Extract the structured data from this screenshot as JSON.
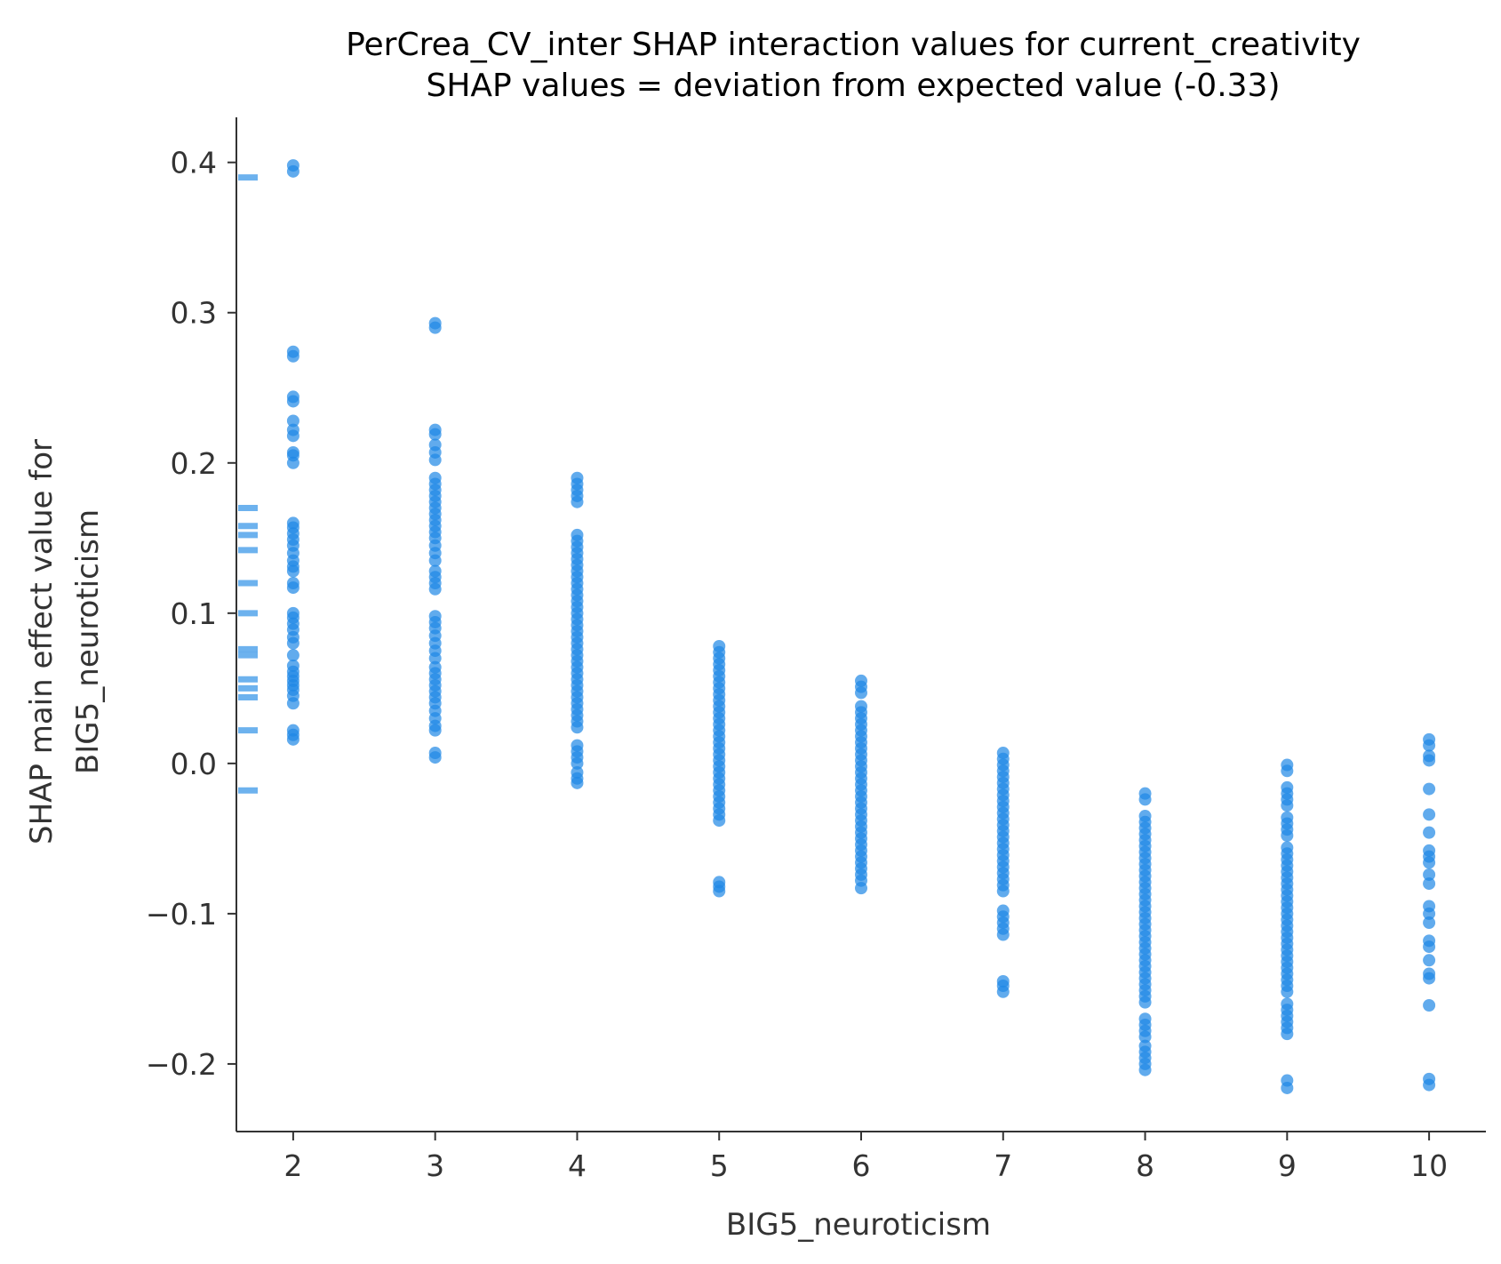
{
  "chart_data": {
    "type": "scatter",
    "title_line1": "PerCrea_CV_inter SHAP interaction values for current_creativity",
    "title_line2": "SHAP values = deviation from expected value (-0.33)",
    "xlabel": "BIG5_neuroticism",
    "ylabel_line1": "SHAP main effect value for",
    "ylabel_line2": "BIG5_neuroticism",
    "xlim": [
      1.6,
      10.4
    ],
    "ylim": [
      -0.245,
      0.43
    ],
    "x_ticks": [
      2,
      3,
      4,
      5,
      6,
      7,
      8,
      9,
      10
    ],
    "x_tick_labels": [
      "2",
      "3",
      "4",
      "5",
      "6",
      "7",
      "8",
      "9",
      "10"
    ],
    "y_ticks": [
      -0.2,
      -0.1,
      0.0,
      0.1,
      0.2,
      0.3,
      0.4
    ],
    "y_tick_labels": [
      "−0.2",
      "−0.1",
      "0.0",
      "0.1",
      "0.2",
      "0.3",
      "0.4"
    ],
    "grid": false,
    "color": "#1e88e5",
    "rug_values": [
      0.39,
      0.17,
      0.158,
      0.152,
      0.142,
      0.12,
      0.1,
      0.076,
      0.072,
      0.056,
      0.05,
      0.044,
      0.022,
      -0.018
    ],
    "series": [
      {
        "points": [
          {
            "x": 2,
            "y": [
              0.398,
              0.394,
              0.274,
              0.271,
              0.244,
              0.241,
              0.228,
              0.222,
              0.218,
              0.207,
              0.205,
              0.2,
              0.16,
              0.157,
              0.153,
              0.149,
              0.145,
              0.14,
              0.135,
              0.131,
              0.128,
              0.12,
              0.117,
              0.1,
              0.097,
              0.093,
              0.089,
              0.084,
              0.08,
              0.072,
              0.065,
              0.061,
              0.058,
              0.055,
              0.052,
              0.049,
              0.045,
              0.04,
              0.022,
              0.019,
              0.016
            ]
          },
          {
            "x": 3,
            "y": [
              0.293,
              0.29,
              0.222,
              0.219,
              0.212,
              0.207,
              0.202,
              0.19,
              0.186,
              0.182,
              0.178,
              0.174,
              0.17,
              0.166,
              0.162,
              0.158,
              0.154,
              0.15,
              0.145,
              0.14,
              0.135,
              0.128,
              0.124,
              0.12,
              0.116,
              0.098,
              0.094,
              0.09,
              0.085,
              0.08,
              0.075,
              0.07,
              0.064,
              0.06,
              0.056,
              0.052,
              0.048,
              0.044,
              0.04,
              0.035,
              0.03,
              0.025,
              0.022,
              0.007,
              0.004
            ]
          },
          {
            "x": 4,
            "y": [
              0.19,
              0.186,
              0.182,
              0.178,
              0.174,
              0.152,
              0.148,
              0.144,
              0.14,
              0.136,
              0.132,
              0.128,
              0.124,
              0.12,
              0.116,
              0.112,
              0.108,
              0.104,
              0.1,
              0.096,
              0.092,
              0.088,
              0.084,
              0.08,
              0.076,
              0.072,
              0.068,
              0.064,
              0.06,
              0.056,
              0.052,
              0.048,
              0.044,
              0.04,
              0.036,
              0.032,
              0.028,
              0.024,
              0.012,
              0.008,
              0.004,
              0.0,
              -0.006,
              -0.01,
              -0.013
            ]
          },
          {
            "x": 5,
            "y": [
              0.078,
              0.074,
              0.07,
              0.066,
              0.062,
              0.058,
              0.054,
              0.05,
              0.046,
              0.042,
              0.038,
              0.034,
              0.03,
              0.026,
              0.022,
              0.018,
              0.014,
              0.01,
              0.006,
              0.002,
              -0.002,
              -0.006,
              -0.01,
              -0.014,
              -0.018,
              -0.022,
              -0.026,
              -0.03,
              -0.034,
              -0.038,
              -0.079,
              -0.082,
              -0.085
            ]
          },
          {
            "x": 6,
            "y": [
              0.055,
              0.051,
              0.047,
              0.038,
              0.034,
              0.03,
              0.026,
              0.022,
              0.018,
              0.014,
              0.01,
              0.006,
              0.002,
              -0.002,
              -0.006,
              -0.01,
              -0.014,
              -0.018,
              -0.022,
              -0.026,
              -0.03,
              -0.034,
              -0.038,
              -0.042,
              -0.046,
              -0.05,
              -0.054,
              -0.058,
              -0.062,
              -0.066,
              -0.07,
              -0.074,
              -0.078,
              -0.083
            ]
          },
          {
            "x": 7,
            "y": [
              0.007,
              0.003,
              -0.001,
              -0.005,
              -0.009,
              -0.013,
              -0.017,
              -0.021,
              -0.025,
              -0.029,
              -0.033,
              -0.037,
              -0.041,
              -0.045,
              -0.049,
              -0.053,
              -0.057,
              -0.061,
              -0.065,
              -0.069,
              -0.073,
              -0.077,
              -0.081,
              -0.085,
              -0.098,
              -0.102,
              -0.106,
              -0.11,
              -0.114,
              -0.145,
              -0.148,
              -0.152
            ]
          },
          {
            "x": 8,
            "y": [
              -0.02,
              -0.024,
              -0.035,
              -0.039,
              -0.043,
              -0.047,
              -0.051,
              -0.055,
              -0.059,
              -0.063,
              -0.067,
              -0.071,
              -0.075,
              -0.079,
              -0.083,
              -0.087,
              -0.091,
              -0.095,
              -0.099,
              -0.103,
              -0.107,
              -0.111,
              -0.115,
              -0.119,
              -0.123,
              -0.127,
              -0.131,
              -0.135,
              -0.139,
              -0.143,
              -0.147,
              -0.151,
              -0.155,
              -0.159,
              -0.17,
              -0.174,
              -0.178,
              -0.182,
              -0.188,
              -0.192,
              -0.196,
              -0.2,
              -0.204
            ]
          },
          {
            "x": 9,
            "y": [
              -0.001,
              -0.005,
              -0.016,
              -0.02,
              -0.024,
              -0.028,
              -0.036,
              -0.04,
              -0.044,
              -0.048,
              -0.056,
              -0.06,
              -0.064,
              -0.068,
              -0.072,
              -0.076,
              -0.08,
              -0.084,
              -0.088,
              -0.092,
              -0.096,
              -0.1,
              -0.104,
              -0.108,
              -0.112,
              -0.116,
              -0.12,
              -0.124,
              -0.128,
              -0.132,
              -0.136,
              -0.14,
              -0.144,
              -0.148,
              -0.152,
              -0.16,
              -0.164,
              -0.168,
              -0.172,
              -0.176,
              -0.18,
              -0.211,
              -0.216
            ]
          },
          {
            "x": 10,
            "y": [
              0.016,
              0.012,
              0.005,
              0.002,
              -0.017,
              -0.034,
              -0.046,
              -0.058,
              -0.062,
              -0.066,
              -0.074,
              -0.08,
              -0.095,
              -0.1,
              -0.106,
              -0.118,
              -0.122,
              -0.131,
              -0.14,
              -0.143,
              -0.161,
              -0.21,
              -0.214
            ]
          }
        ]
      }
    ]
  }
}
